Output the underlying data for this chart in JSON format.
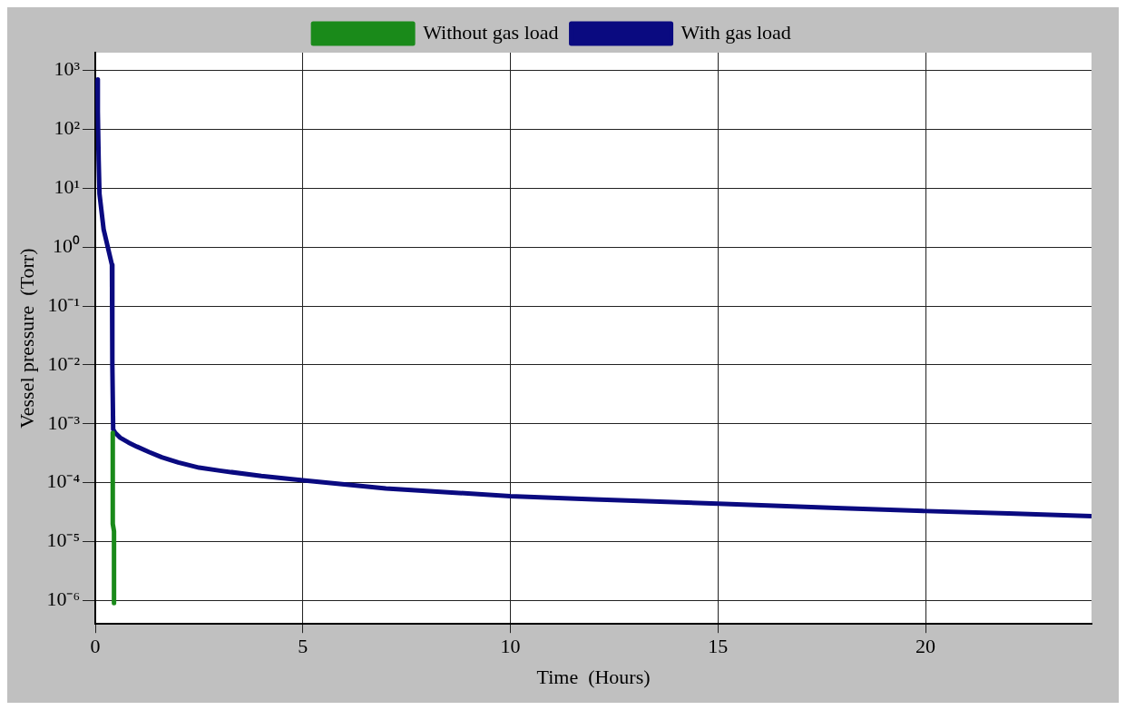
{
  "chart_data": {
    "type": "line",
    "xlabel": "Time  (Hours)",
    "ylabel": "Vessel pressure  (Torr)",
    "xlim": [
      0,
      24
    ],
    "xticks": [
      0,
      5,
      10,
      15,
      20
    ],
    "ylim": [
      4e-07,
      2000
    ],
    "yticks": [
      {
        "value": 1000,
        "label": "10³"
      },
      {
        "value": 100,
        "label": "10²"
      },
      {
        "value": 10,
        "label": "10¹"
      },
      {
        "value": 1,
        "label": "10⁰"
      },
      {
        "value": 0.1,
        "label": "10⁻¹"
      },
      {
        "value": 0.01,
        "label": "10⁻²"
      },
      {
        "value": 0.001,
        "label": "10⁻³"
      },
      {
        "value": 0.0001,
        "label": "10⁻⁴"
      },
      {
        "value": 1e-05,
        "label": "10⁻⁵"
      },
      {
        "value": 1e-06,
        "label": "10⁻⁶"
      }
    ],
    "log": "y",
    "grid": true,
    "legend": "top",
    "marker": "none",
    "line_style": "solid",
    "series": [
      {
        "name": "Without gas load",
        "color": "#1a8a1a",
        "x": [
          0.42,
          0.42,
          0.45,
          0.45
        ],
        "values": [
          0.0007,
          2e-05,
          1.5e-05,
          9e-07
        ]
      },
      {
        "name": "With gas load",
        "color": "#0a0a80",
        "x": [
          0.05,
          0.06,
          0.08,
          0.1,
          0.2,
          0.4,
          0.41,
          0.43,
          0.48,
          0.6,
          0.8,
          1,
          1.3,
          1.6,
          2,
          2.5,
          3,
          4,
          5,
          7,
          10,
          12,
          15,
          18,
          20,
          22,
          24
        ],
        "values": [
          700,
          200,
          30,
          8,
          2,
          0.5,
          0.01,
          0.0008,
          0.0007,
          0.00058,
          0.00048,
          0.00041,
          0.00033,
          0.00027,
          0.00022,
          0.00018,
          0.00016,
          0.00013,
          0.00011,
          8e-05,
          5.9e-05,
          5.2e-05,
          4.4e-05,
          3.7e-05,
          3.3e-05,
          3e-05,
          2.7e-05
        ]
      }
    ]
  }
}
